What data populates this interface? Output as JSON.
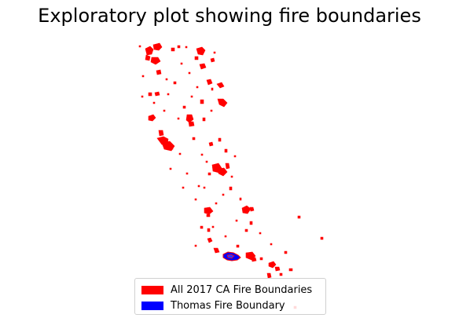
{
  "title": "Exploratory plot showing fire boundaries",
  "colors": {
    "all_fires": "#ff0000",
    "thomas_fire": "#0000ff"
  },
  "legend": {
    "items": [
      {
        "label": "All 2017 CA Fire Boundaries",
        "color": "#ff0000"
      },
      {
        "label": "Thomas Fire Boundary",
        "color": "#0000ff"
      }
    ]
  }
}
